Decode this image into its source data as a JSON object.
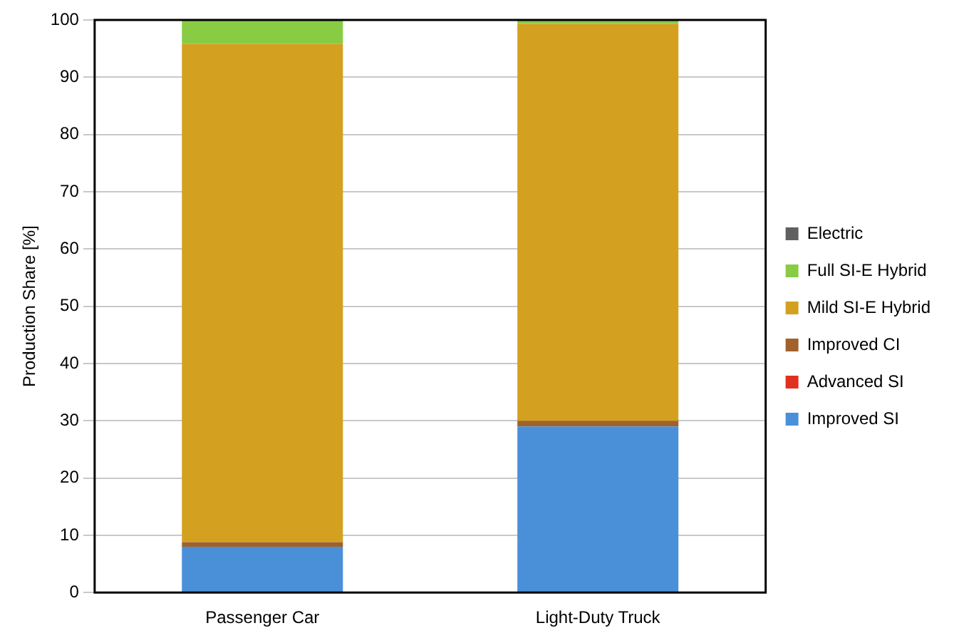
{
  "chart_data": {
    "type": "bar",
    "stacked": true,
    "ylabel": "Production Share [%]",
    "categories": [
      "Passenger Car",
      "Light-Duty Truck"
    ],
    "series": [
      {
        "name": "Improved SI",
        "color": "#4a90d9",
        "values": [
          8,
          29
        ]
      },
      {
        "name": "Advanced SI",
        "color": "#e03020",
        "values": [
          0,
          0
        ]
      },
      {
        "name": "Improved CI",
        "color": "#a0622a",
        "values": [
          0.8,
          1
        ]
      },
      {
        "name": "Mild SI-E Hybrid",
        "color": "#d4a020",
        "values": [
          87,
          69.3
        ]
      },
      {
        "name": "Full SI-E Hybrid",
        "color": "#88cc44",
        "values": [
          4.2,
          0.7
        ]
      },
      {
        "name": "Electric",
        "color": "#606060",
        "values": [
          0,
          0
        ]
      }
    ],
    "ylim": [
      0,
      100
    ],
    "yticks": [
      0,
      10,
      20,
      30,
      40,
      50,
      60,
      70,
      80,
      90,
      100
    ],
    "grid": "y",
    "legend": "right"
  }
}
